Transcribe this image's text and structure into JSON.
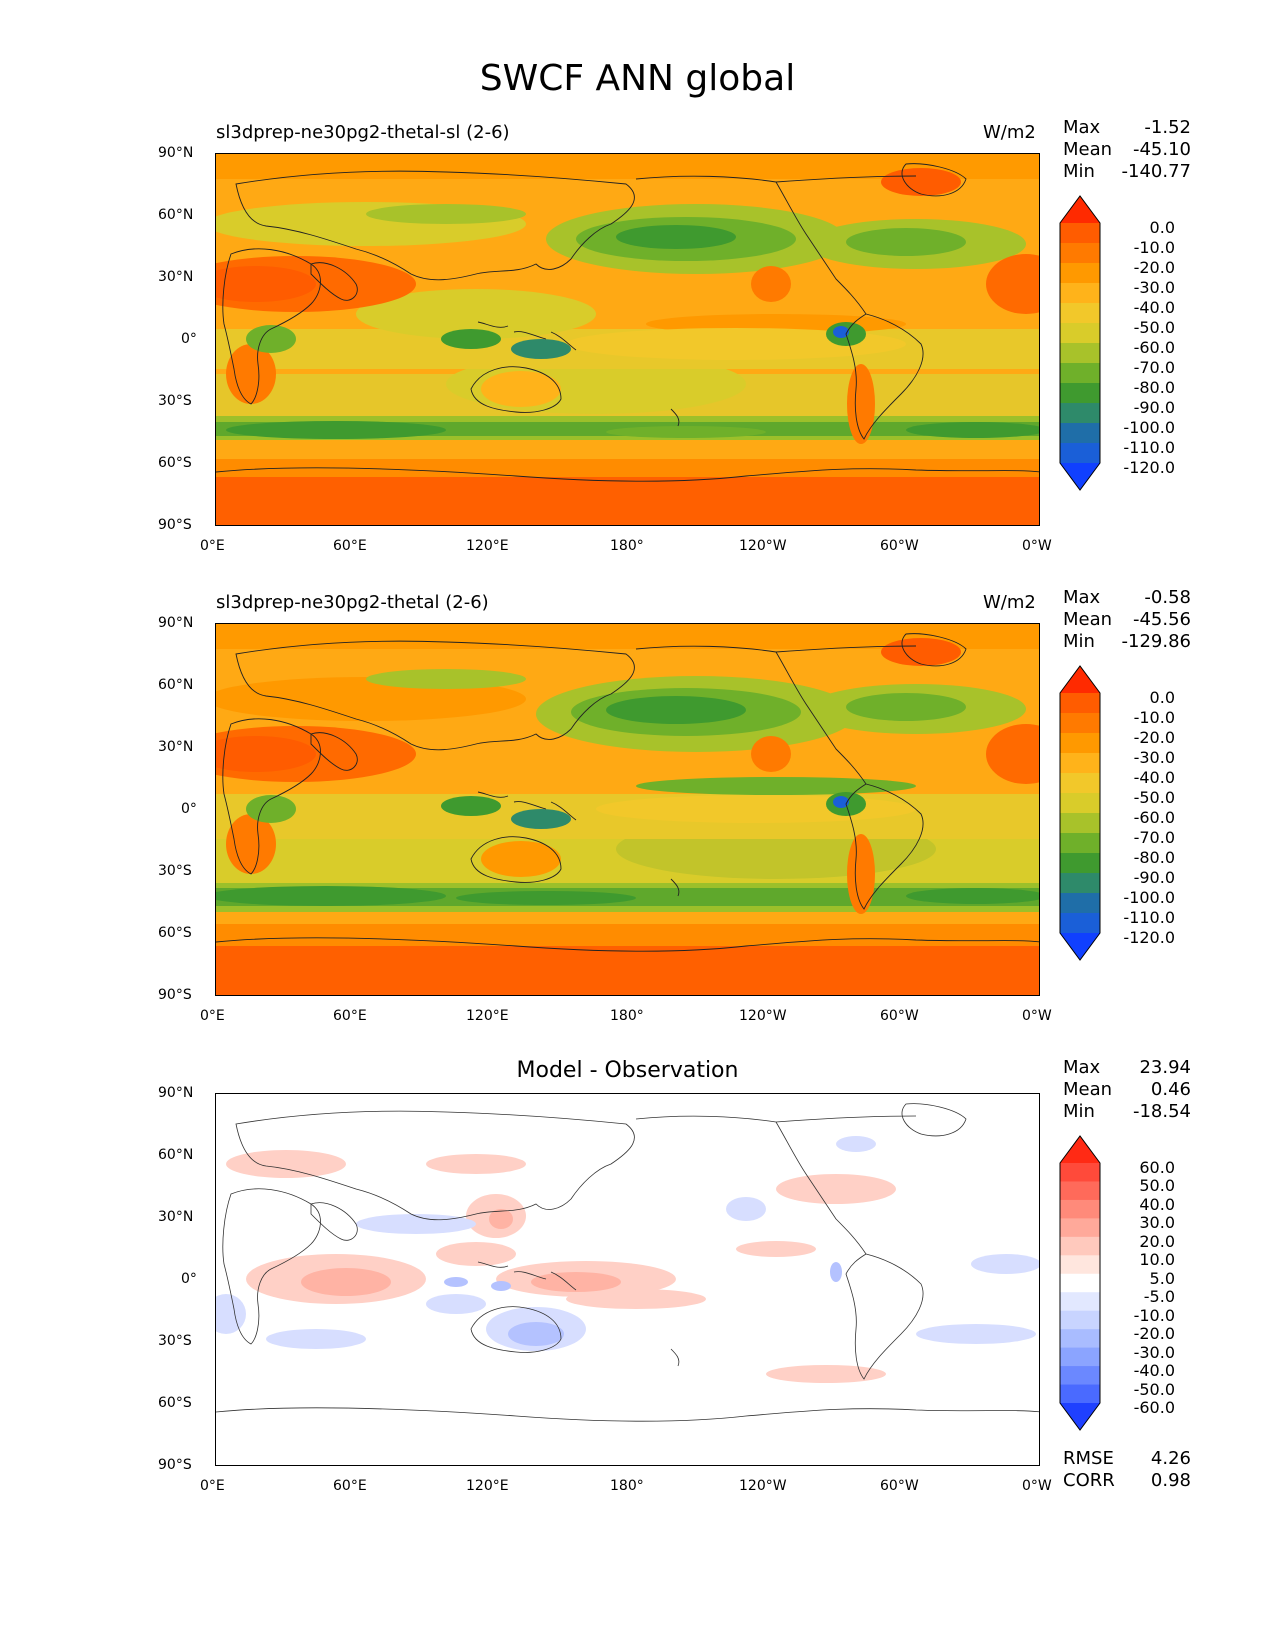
{
  "figure_title": "SWCF ANN global",
  "panels": [
    {
      "title": "sl3dprep-ne30pg2-thetal-sl (2-6)",
      "units": "W/m2",
      "stats": {
        "max_label": "Max",
        "max": "-1.52",
        "mean_label": "Mean",
        "mean": "-45.10",
        "min_label": "Min",
        "min": "-140.77"
      },
      "colorbar": {
        "labels": [
          "0.0",
          "-10.0",
          "-20.0",
          "-30.0",
          "-40.0",
          "-50.0",
          "-60.0",
          "-70.0",
          "-80.0",
          "-90.0",
          "-100.0",
          "-110.0",
          "-120.0"
        ],
        "colors": [
          "#ff2a00",
          "#ff5c00",
          "#ff7a00",
          "#ff9900",
          "#ffb31a",
          "#f2c82a",
          "#d9cc2a",
          "#a8c22a",
          "#6fb02a",
          "#3f9a2f",
          "#2e8a6a",
          "#1f6ea8",
          "#1a5fd8",
          "#1040ff"
        ]
      }
    },
    {
      "title": "sl3dprep-ne30pg2-thetal (2-6)",
      "units": "W/m2",
      "stats": {
        "max_label": "Max",
        "max": "-0.58",
        "mean_label": "Mean",
        "mean": "-45.56",
        "min_label": "Min",
        "min": "-129.86"
      },
      "colorbar": {
        "labels": [
          "0.0",
          "-10.0",
          "-20.0",
          "-30.0",
          "-40.0",
          "-50.0",
          "-60.0",
          "-70.0",
          "-80.0",
          "-90.0",
          "-100.0",
          "-110.0",
          "-120.0"
        ],
        "colors": [
          "#ff2a00",
          "#ff5c00",
          "#ff7a00",
          "#ff9900",
          "#ffb31a",
          "#f2c82a",
          "#d9cc2a",
          "#a8c22a",
          "#6fb02a",
          "#3f9a2f",
          "#2e8a6a",
          "#1f6ea8",
          "#1a5fd8",
          "#1040ff"
        ]
      }
    },
    {
      "title": "Model - Observation",
      "stats": {
        "max_label": "Max",
        "max": "23.94",
        "mean_label": "Mean",
        "mean": "0.46",
        "min_label": "Min",
        "min": "-18.54"
      },
      "metrics": {
        "rmse_label": "RMSE",
        "rmse": "4.26",
        "corr_label": "CORR",
        "corr": "0.98"
      },
      "colorbar": {
        "labels": [
          "60.0",
          "50.0",
          "40.0",
          "30.0",
          "20.0",
          "10.0",
          "5.0",
          "-5.0",
          "-10.0",
          "-20.0",
          "-30.0",
          "-40.0",
          "-50.0",
          "-60.0"
        ],
        "colors": [
          "#ff2a14",
          "#ff4a3a",
          "#ff6a5a",
          "#ff8a7a",
          "#ffa99a",
          "#ffc9bd",
          "#ffe6de",
          "#ffffff",
          "#e2e8ff",
          "#c8d4ff",
          "#a9bcff",
          "#8ba4ff",
          "#6b88ff",
          "#4a6aff",
          "#1f40ff"
        ]
      }
    }
  ],
  "axes": {
    "lat_ticks": [
      "90°N",
      "60°N",
      "30°N",
      "0°",
      "30°S",
      "60°S",
      "90°S"
    ],
    "lon_ticks": [
      "0°E",
      "60°E",
      "120°E",
      "180°",
      "120°W",
      "60°W",
      "0°W"
    ]
  }
}
